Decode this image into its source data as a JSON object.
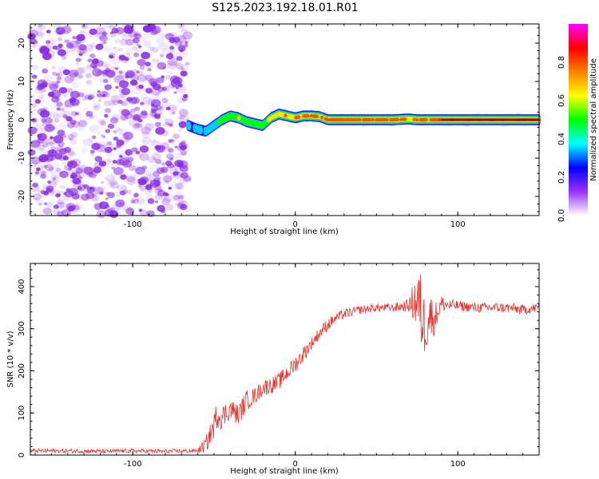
{
  "title": "S125.2023.192.18.01.R01",
  "colors": {
    "snr_line": "#e8302a",
    "noise": "#8a2be2",
    "frame": "#000000"
  },
  "chart_data": [
    {
      "type": "heatmap",
      "xlabel": "Height of straight line (km)",
      "ylabel": "Frequency (Hz)",
      "xlim": [
        -163,
        150
      ],
      "ylim": [
        -25,
        25
      ],
      "xticks": [
        -100,
        0,
        100
      ],
      "xtick_labels": [
        "-100",
        "0",
        "100"
      ],
      "yticks": [
        -20,
        -10,
        0,
        10,
        20
      ],
      "ytick_labels": [
        "-20",
        "-10",
        "0",
        "10",
        "20"
      ],
      "colorbar": {
        "label": "Normalized spectral amplitude",
        "range": [
          0,
          1
        ],
        "ticks": [
          0.0,
          0.2,
          0.4,
          0.6,
          0.8
        ],
        "tick_labels": [
          "0.0",
          "0.2",
          "0.4",
          "0.6",
          "0.8"
        ],
        "colormap": [
          "#ffffff",
          "#9b30ff",
          "#0000ff",
          "#00ffff",
          "#00ff00",
          "#ffff00",
          "#ff8000",
          "#ff0000",
          "#ff00ff"
        ]
      },
      "noise_region": {
        "x_from": -163,
        "x_to": -66,
        "amplitude": 0.15
      },
      "signal_track": {
        "x": [
          -66,
          -60,
          -55,
          -50,
          -45,
          -40,
          -35,
          -30,
          -25,
          -20,
          -15,
          -10,
          -5,
          0,
          5,
          10,
          15,
          20,
          30,
          40,
          50,
          60,
          70,
          75,
          80,
          90,
          100,
          110,
          120,
          130,
          140,
          150
        ],
        "frequency": [
          -1.5,
          -2.5,
          -3.0,
          -1.5,
          0.0,
          1.0,
          0.5,
          -0.5,
          -1.0,
          -1.5,
          0.5,
          1.5,
          1.0,
          0.5,
          1.0,
          1.0,
          0.8,
          0.0,
          0.0,
          0.0,
          0.0,
          0.0,
          0.2,
          0.0,
          0.0,
          0.0,
          0.0,
          0.0,
          0.0,
          0.0,
          0.0,
          0.0
        ],
        "amplitude": [
          0.4,
          0.35,
          0.4,
          0.5,
          0.55,
          0.6,
          0.65,
          0.6,
          0.55,
          0.6,
          0.7,
          0.75,
          0.8,
          0.85,
          0.85,
          0.85,
          0.8,
          0.85,
          0.9,
          0.9,
          0.9,
          0.85,
          0.8,
          0.85,
          0.9,
          0.95,
          0.95,
          0.95,
          0.95,
          0.95,
          0.95,
          0.95
        ]
      },
      "reference_line_frequency": 0
    },
    {
      "type": "line",
      "xlabel": "Height of straight line (km)",
      "ylabel": "SNR (10 * v/v)",
      "xlim": [
        -163,
        150
      ],
      "ylim": [
        0,
        455
      ],
      "xticks": [
        -100,
        0,
        100
      ],
      "xtick_labels": [
        "-100",
        "0",
        "100"
      ],
      "yticks": [
        0,
        100,
        200,
        300,
        400
      ],
      "ytick_labels": [
        "0",
        "100",
        "200",
        "300",
        "400"
      ],
      "series": [
        {
          "x": [
            -163,
            -140,
            -120,
            -100,
            -80,
            -60,
            -55,
            -50,
            -48,
            -45,
            -40,
            -35,
            -30,
            -25,
            -20,
            -15,
            -10,
            -5,
            0,
            5,
            10,
            15,
            20,
            25,
            30,
            40,
            50,
            60,
            70,
            75,
            78,
            80,
            82,
            85,
            90,
            95,
            100,
            110,
            120,
            130,
            140,
            150
          ],
          "y": [
            10,
            10,
            9,
            10,
            9,
            10,
            25,
            70,
            100,
            90,
            110,
            95,
            130,
            140,
            160,
            165,
            175,
            195,
            215,
            240,
            265,
            290,
            310,
            325,
            335,
            345,
            350,
            350,
            355,
            370,
            330,
            300,
            340,
            320,
            360,
            355,
            355,
            350,
            350,
            350,
            345,
            350
          ],
          "noise": [
            5,
            5,
            5,
            5,
            5,
            5,
            20,
            30,
            35,
            30,
            25,
            25,
            25,
            20,
            20,
            20,
            20,
            20,
            20,
            20,
            15,
            15,
            15,
            12,
            12,
            10,
            10,
            10,
            15,
            80,
            100,
            60,
            80,
            40,
            20,
            15,
            12,
            12,
            12,
            12,
            12,
            12
          ]
        }
      ]
    }
  ]
}
